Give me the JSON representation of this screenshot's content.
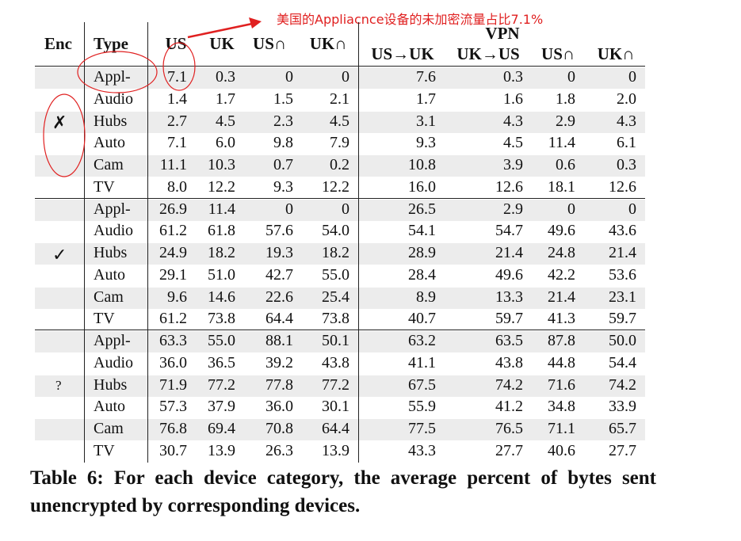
{
  "annotation": {
    "text": "美国的Appliacnce设备的未加密流量占比7.1%",
    "color": "#e02020"
  },
  "table": {
    "headers": {
      "enc": "Enc",
      "type": "Type",
      "us": "US",
      "uk": "UK",
      "us_cap": "US∩",
      "uk_cap": "UK∩",
      "vpn": "VPN",
      "us_to_uk": "US→UK",
      "uk_to_us": "UK→US",
      "vpn_us_cap": "US∩",
      "vpn_uk_cap": "UK∩"
    },
    "groups": [
      {
        "enc": "✗",
        "rows": [
          {
            "type": "Appl-",
            "values": [
              "7.1",
              "0.3",
              "0",
              "0",
              "7.6",
              "0.3",
              "0",
              "0"
            ]
          },
          {
            "type": "Audio",
            "values": [
              "1.4",
              "1.7",
              "1.5",
              "2.1",
              "1.7",
              "1.6",
              "1.8",
              "2.0"
            ]
          },
          {
            "type": "Hubs",
            "values": [
              "2.7",
              "4.5",
              "2.3",
              "4.5",
              "3.1",
              "4.3",
              "2.9",
              "4.3"
            ]
          },
          {
            "type": "Auto",
            "values": [
              "7.1",
              "6.0",
              "9.8",
              "7.9",
              "9.3",
              "4.5",
              "11.4",
              "6.1"
            ]
          },
          {
            "type": "Cam",
            "values": [
              "11.1",
              "10.3",
              "0.7",
              "0.2",
              "10.8",
              "3.9",
              "0.6",
              "0.3"
            ]
          },
          {
            "type": "TV",
            "values": [
              "8.0",
              "12.2",
              "9.3",
              "12.2",
              "16.0",
              "12.6",
              "18.1",
              "12.6"
            ]
          }
        ]
      },
      {
        "enc": "✓",
        "rows": [
          {
            "type": "Appl-",
            "values": [
              "26.9",
              "11.4",
              "0",
              "0",
              "26.5",
              "2.9",
              "0",
              "0"
            ]
          },
          {
            "type": "Audio",
            "values": [
              "61.2",
              "61.8",
              "57.6",
              "54.0",
              "54.1",
              "54.7",
              "49.6",
              "43.6"
            ]
          },
          {
            "type": "Hubs",
            "values": [
              "24.9",
              "18.2",
              "19.3",
              "18.2",
              "28.9",
              "21.4",
              "24.8",
              "21.4"
            ]
          },
          {
            "type": "Auto",
            "values": [
              "29.1",
              "51.0",
              "42.7",
              "55.0",
              "28.4",
              "49.6",
              "42.2",
              "53.6"
            ]
          },
          {
            "type": "Cam",
            "values": [
              "9.6",
              "14.6",
              "22.6",
              "25.4",
              "8.9",
              "13.3",
              "21.4",
              "23.1"
            ]
          },
          {
            "type": "TV",
            "values": [
              "61.2",
              "73.8",
              "64.4",
              "73.8",
              "40.7",
              "59.7",
              "41.3",
              "59.7"
            ]
          }
        ]
      },
      {
        "enc": "?",
        "rows": [
          {
            "type": "Appl-",
            "values": [
              "63.3",
              "55.0",
              "88.1",
              "50.1",
              "63.2",
              "63.5",
              "87.8",
              "50.0"
            ]
          },
          {
            "type": "Audio",
            "values": [
              "36.0",
              "36.5",
              "39.2",
              "43.8",
              "41.1",
              "43.8",
              "44.8",
              "54.4"
            ]
          },
          {
            "type": "Hubs",
            "values": [
              "71.9",
              "77.2",
              "77.8",
              "77.2",
              "67.5",
              "74.2",
              "71.6",
              "74.2"
            ]
          },
          {
            "type": "Auto",
            "values": [
              "57.3",
              "37.9",
              "36.0",
              "30.1",
              "55.9",
              "41.2",
              "34.8",
              "33.9"
            ]
          },
          {
            "type": "Cam",
            "values": [
              "76.8",
              "69.4",
              "70.8",
              "64.4",
              "77.5",
              "76.5",
              "71.1",
              "65.7"
            ]
          },
          {
            "type": "TV",
            "values": [
              "30.7",
              "13.9",
              "26.3",
              "13.9",
              "43.3",
              "27.7",
              "40.6",
              "27.7"
            ]
          }
        ]
      }
    ]
  },
  "caption": "Table 6: For each device category, the average percent of bytes sent unencrypted by corresponding devices."
}
